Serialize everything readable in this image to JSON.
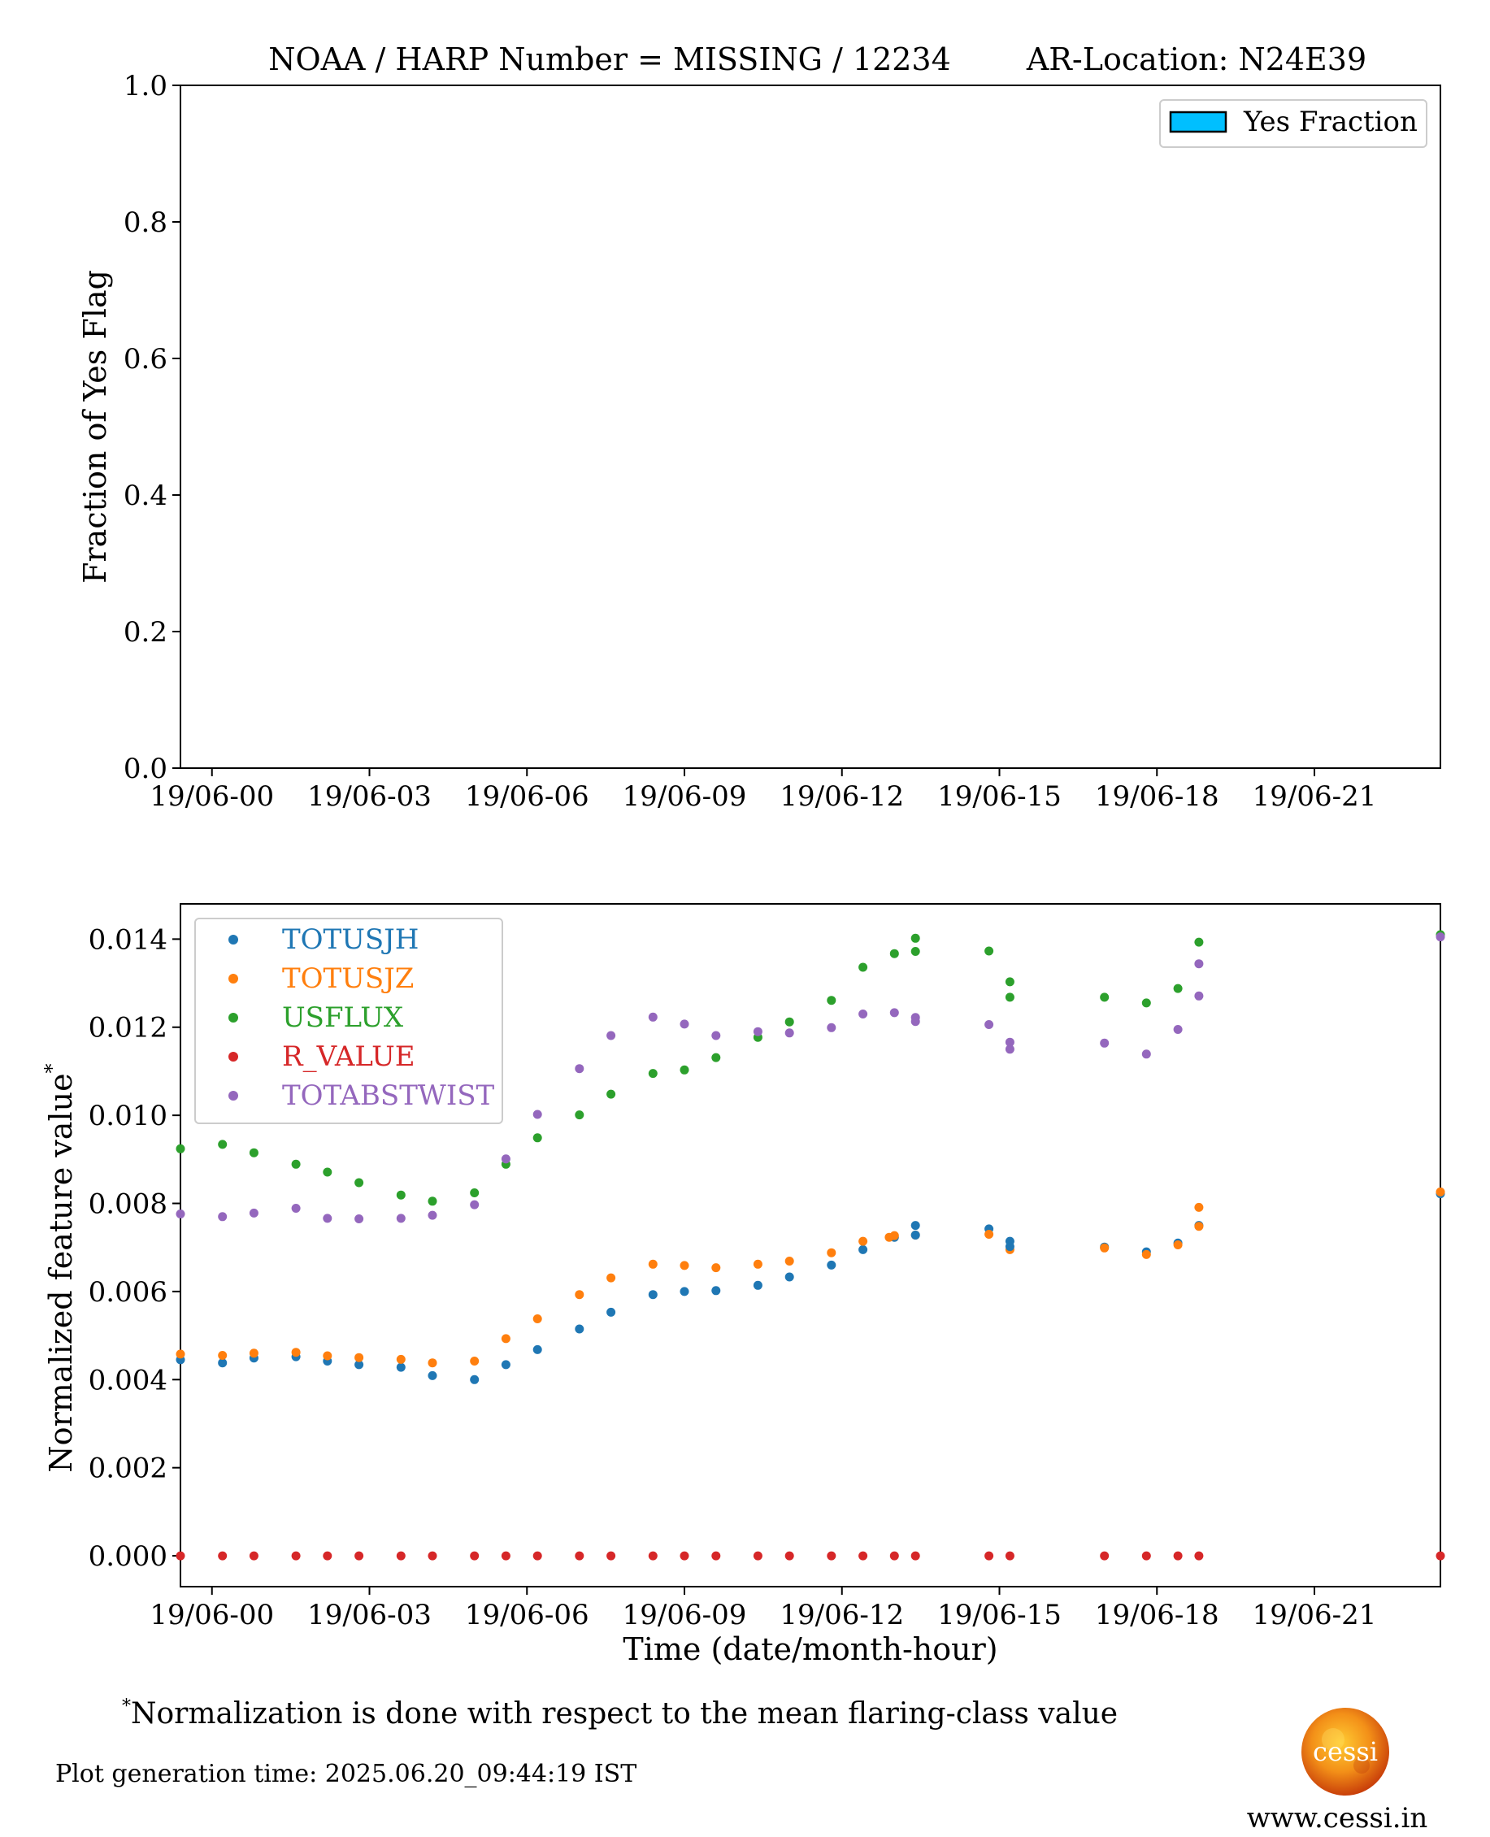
{
  "figure": {
    "footnote_mark": "*",
    "footnote_text": "Normalization is done with respect to the mean flaring-class value",
    "generation_time": "Plot generation time: 2025.06.20_09:44:19 IST",
    "logo_text": "cessi",
    "website": "www.cessi.in"
  },
  "chart_data": [
    {
      "type": "bar",
      "title_left": "NOAA / HARP Number = MISSING / 12234",
      "title_right": "AR-Location: N24E39",
      "ylabel": "Fraction of Yes Flag",
      "xlabel": "",
      "xlim_hours": [
        -0.6,
        23.4
      ],
      "ylim": [
        0,
        1.0
      ],
      "yticks": [
        "0.0",
        "0.2",
        "0.4",
        "0.6",
        "0.8",
        "1.0"
      ],
      "xticks": [
        "19/06-00",
        "19/06-03",
        "19/06-06",
        "19/06-09",
        "19/06-12",
        "19/06-15",
        "19/06-18",
        "19/06-21"
      ],
      "legend": {
        "label": "Yes Fraction",
        "color": "#00bfff",
        "placement": "top-right"
      },
      "values": []
    },
    {
      "type": "scatter",
      "ylabel": "Normalized feature value",
      "ylabel_superscript": "*",
      "xlabel": "Time (date/month-hour)",
      "xlim_hours": [
        -0.6,
        23.4
      ],
      "ylim": [
        -0.0007,
        0.0148
      ],
      "yticks": [
        "0.000",
        "0.002",
        "0.004",
        "0.006",
        "0.008",
        "0.010",
        "0.012",
        "0.014"
      ],
      "xticks": [
        "19/06-00",
        "19/06-03",
        "19/06-06",
        "19/06-09",
        "19/06-12",
        "19/06-15",
        "19/06-18",
        "19/06-21"
      ],
      "legend_placement": "top-left",
      "x_hours": [
        -0.6,
        0.2,
        0.8,
        1.6,
        2.2,
        2.8,
        3.6,
        4.2,
        5.0,
        5.6,
        6.2,
        7.0,
        7.6,
        8.4,
        9.0,
        9.6,
        10.4,
        11.0,
        11.8,
        12.4,
        13.0,
        13.4,
        14.8,
        15.2,
        17.0,
        17.8,
        18.4,
        18.8,
        23.4
      ],
      "series": [
        {
          "name": "TOTUSJH",
          "color": "#1f77b4",
          "values": [
            0.00445,
            0.00438,
            0.00449,
            0.00452,
            0.00442,
            0.00434,
            0.00428,
            0.00409,
            0.004,
            0.00434,
            0.00468,
            0.00515,
            0.00553,
            0.00593,
            0.006,
            0.00602,
            0.00614,
            0.00633,
            0.0066,
            0.00695,
            0.00723,
            0.0075,
            0.00742,
            0.00714,
            0.00701,
            0.0069,
            0.0071,
            0.0075,
            0.00822
          ]
        },
        {
          "name": "TOTUSJZ",
          "color": "#ff7f0e",
          "values": [
            0.00458,
            0.00455,
            0.0046,
            0.00462,
            0.00454,
            0.0045,
            0.00446,
            0.00438,
            0.00442,
            0.00493,
            0.00538,
            0.00593,
            0.00631,
            0.00662,
            0.00659,
            0.00654,
            0.00662,
            0.00669,
            0.00688,
            0.00714,
            0.00727,
            0.00728,
            0.0073,
            0.00695,
            0.00699,
            0.00684,
            0.00706,
            0.00791,
            0.00826
          ]
        },
        {
          "name": "USFLUX",
          "color": "#2ca02c",
          "values": [
            0.00924,
            0.00934,
            0.00915,
            0.00889,
            0.00871,
            0.00847,
            0.00819,
            0.00805,
            0.00824,
            0.00889,
            0.00949,
            0.01001,
            0.01048,
            0.01095,
            0.01103,
            0.01131,
            0.01177,
            0.01212,
            0.01261,
            0.01336,
            0.01367,
            0.01402,
            0.01373,
            0.01303,
            0.01268,
            0.01255,
            0.01288,
            0.01393,
            0.0141
          ]
        },
        {
          "name": "R_VALUE",
          "color": "#d62728",
          "values": [
            0.0,
            0.0,
            0.0,
            0.0,
            0.0,
            0.0,
            0.0,
            0.0,
            0.0,
            0.0,
            0.0,
            0.0,
            0.0,
            0.0,
            0.0,
            0.0,
            0.0,
            0.0,
            0.0,
            0.0,
            0.0,
            0.0,
            0.0,
            0.0,
            0.0,
            0.0,
            0.0,
            0.0,
            0.0
          ]
        },
        {
          "name": "TOTABSTWIST",
          "color": "#9467bd",
          "values": [
            0.00776,
            0.0077,
            0.00778,
            0.00789,
            0.00766,
            0.00765,
            0.00766,
            0.00773,
            0.00797,
            0.00901,
            0.01002,
            0.01106,
            0.01181,
            0.01223,
            0.01207,
            0.01181,
            0.0119,
            0.01187,
            0.01199,
            0.0123,
            0.01233,
            0.01213,
            0.01206,
            0.0115,
            0.01164,
            0.01139,
            0.01195,
            0.01344,
            0.01405
          ]
        }
      ],
      "extra_points": [
        {
          "series": "TOTUSJH",
          "x_hours": 13.4,
          "y": 0.00728
        },
        {
          "series": "TOTUSJH",
          "x_hours": 15.2,
          "y": 0.00702
        },
        {
          "series": "TOTUSJZ",
          "x_hours": 18.8,
          "y": 0.00748
        },
        {
          "series": "TOTUSJZ",
          "x_hours": 12.9,
          "y": 0.00723
        },
        {
          "series": "USFLUX",
          "x_hours": 13.4,
          "y": 0.01372
        },
        {
          "series": "USFLUX",
          "x_hours": 15.2,
          "y": 0.01268
        },
        {
          "series": "TOTABSTWIST",
          "x_hours": 13.4,
          "y": 0.01222
        },
        {
          "series": "TOTABSTWIST",
          "x_hours": 15.2,
          "y": 0.01166
        },
        {
          "series": "TOTABSTWIST",
          "x_hours": 18.8,
          "y": 0.01271
        }
      ]
    }
  ]
}
